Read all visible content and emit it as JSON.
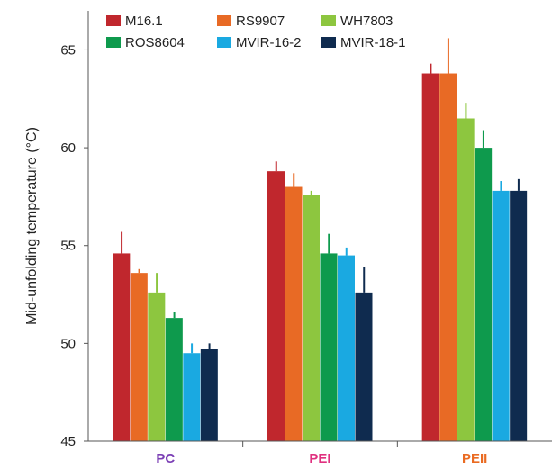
{
  "chart_data": {
    "type": "bar",
    "title": "",
    "xlabel": "",
    "ylabel": "Mid-unfolding temperature (°C)",
    "ylim": [
      45,
      67
    ],
    "yticks": [
      45,
      50,
      55,
      60,
      65
    ],
    "grid": false,
    "legend_position": "top",
    "categories": [
      "PC",
      "PEI",
      "PEII"
    ],
    "category_colors": [
      "#7b3fb5",
      "#e0307f",
      "#ea6b22"
    ],
    "series": [
      {
        "name": "M16.1",
        "color": "#c0272d",
        "values": [
          54.6,
          58.8,
          63.8
        ],
        "errors": [
          1.1,
          0.5,
          0.5
        ]
      },
      {
        "name": "RS9907",
        "color": "#e86a25",
        "values": [
          53.6,
          58.0,
          63.8
        ],
        "errors": [
          0.2,
          0.7,
          1.8
        ]
      },
      {
        "name": "WH7803",
        "color": "#8dc63f",
        "values": [
          52.6,
          57.6,
          61.5
        ],
        "errors": [
          1.0,
          0.2,
          0.8
        ]
      },
      {
        "name": "ROS8604",
        "color": "#0e9a4d",
        "values": [
          51.3,
          54.6,
          60.0
        ],
        "errors": [
          0.3,
          1.0,
          0.9
        ]
      },
      {
        "name": "MVIR-16-2",
        "color": "#1aa9e1",
        "values": [
          49.5,
          54.5,
          57.8
        ],
        "errors": [
          0.5,
          0.4,
          0.5
        ]
      },
      {
        "name": "MVIR-18-1",
        "color": "#0f2b4f",
        "values": [
          49.7,
          52.6,
          57.8
        ],
        "errors": [
          0.3,
          1.3,
          0.6
        ]
      }
    ]
  }
}
